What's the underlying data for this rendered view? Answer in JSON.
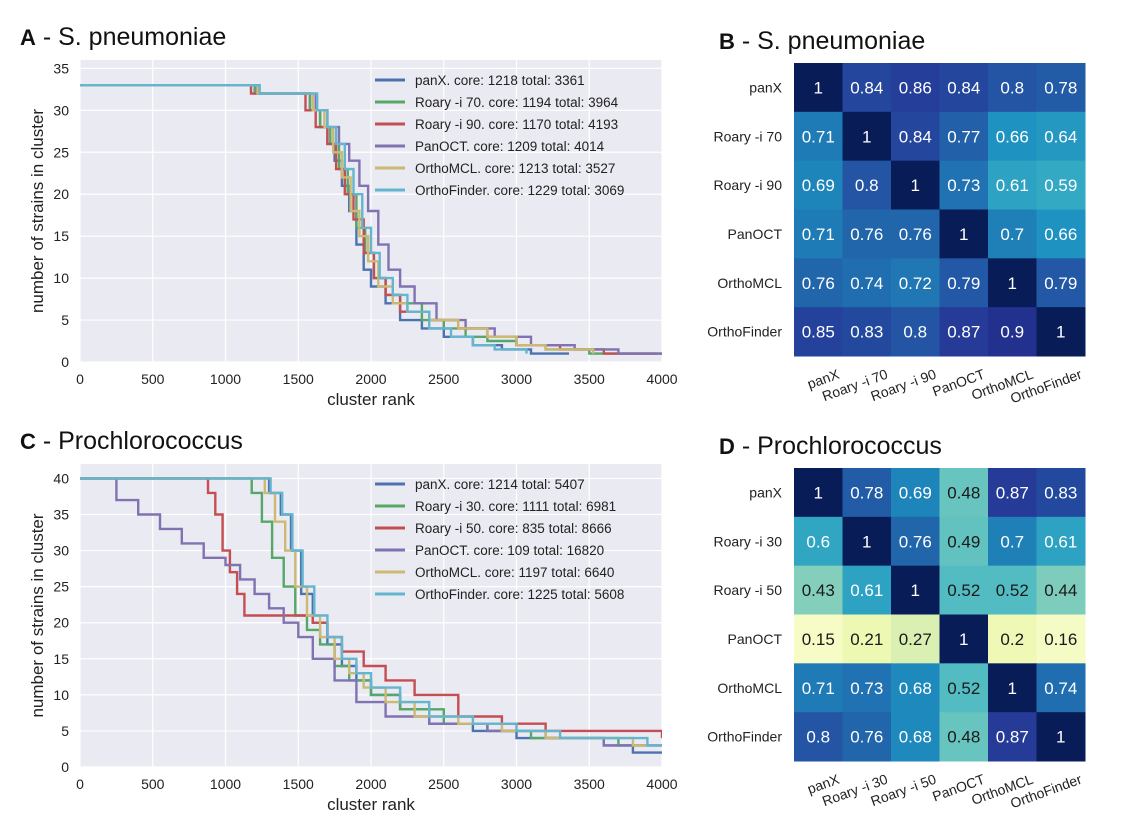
{
  "panels": [
    {
      "letter": "A",
      "title": " - S. pneumoniae"
    },
    {
      "letter": "B",
      "title": " - S. pneumoniae"
    },
    {
      "letter": "C",
      "title": " - Prochlorococcus"
    },
    {
      "letter": "D",
      "title": " - Prochlorococcus"
    }
  ],
  "chart_data": [
    {
      "panel": "A",
      "type": "line",
      "xlabel": "cluster rank",
      "ylabel": "number of strains in cluster",
      "xlim": [
        0,
        4000
      ],
      "ylim": [
        0,
        36
      ],
      "xticks": [
        0,
        500,
        1000,
        1500,
        2000,
        2500,
        3000,
        3500,
        4000
      ],
      "yticks": [
        0,
        5,
        10,
        15,
        20,
        25,
        30,
        35
      ],
      "grid": true,
      "legend_position": "top-right",
      "series": [
        {
          "name": "panX. core: 1218 total: 3361",
          "color": "#4c72b0",
          "x": [
            0,
            1218,
            1220,
            1500,
            1580,
            1650,
            1700,
            1750,
            1800,
            1850,
            1900,
            1950,
            2000,
            2100,
            2200,
            2350,
            2500,
            2700,
            2900,
            3100,
            3361
          ],
          "y": [
            33,
            33,
            32,
            32,
            30,
            28,
            26,
            24,
            21,
            18,
            14,
            11,
            9,
            7,
            5,
            4,
            3,
            2,
            1.5,
            1,
            1
          ]
        },
        {
          "name": "Roary -i 70. core: 1194 total: 3964",
          "color": "#55a868",
          "x": [
            0,
            1194,
            1200,
            1480,
            1580,
            1650,
            1720,
            1780,
            1840,
            1900,
            1960,
            2020,
            2100,
            2200,
            2350,
            2500,
            2650,
            2800,
            3000,
            3200,
            3500,
            3964
          ],
          "y": [
            33,
            33,
            32,
            32,
            30,
            28,
            26,
            23,
            20,
            16,
            13,
            10,
            8,
            7,
            5,
            4,
            3,
            2.5,
            2,
            1.5,
            1,
            1
          ]
        },
        {
          "name": "Roary -i 90. core: 1170 total: 4193",
          "color": "#c44e52",
          "x": [
            0,
            1170,
            1175,
            1450,
            1550,
            1620,
            1700,
            1760,
            1820,
            1880,
            1950,
            2020,
            2100,
            2200,
            2400,
            2600,
            2800,
            3000,
            3300,
            3600,
            4000
          ],
          "y": [
            33,
            33,
            32,
            32,
            30,
            28,
            26,
            23,
            20,
            17,
            13,
            10,
            8,
            6,
            5,
            4,
            3,
            2,
            1.5,
            1,
            1
          ]
        },
        {
          "name": "PanOCT. core: 1209 total: 4014",
          "color": "#8172b2",
          "x": [
            0,
            1209,
            1215,
            1520,
            1620,
            1700,
            1780,
            1850,
            1920,
            1980,
            2050,
            2120,
            2200,
            2300,
            2450,
            2650,
            2850,
            3100,
            3400,
            3700,
            4000
          ],
          "y": [
            33,
            33,
            32,
            32,
            30,
            28,
            26,
            24,
            21,
            18,
            14,
            11,
            9,
            7,
            5,
            4,
            3,
            2,
            1.5,
            1,
            1
          ]
        },
        {
          "name": "OrthoMCL. core: 1213 total: 3527",
          "color": "#ccb974",
          "x": [
            0,
            1213,
            1220,
            1500,
            1600,
            1680,
            1740,
            1800,
            1860,
            1920,
            1980,
            2050,
            2150,
            2250,
            2400,
            2600,
            2800,
            3000,
            3200,
            3527
          ],
          "y": [
            33,
            33,
            32,
            32,
            30,
            28,
            25,
            22,
            18,
            15,
            12,
            9,
            7,
            6,
            5,
            4,
            3,
            2,
            1.5,
            1
          ]
        },
        {
          "name": "OrthoFinder. core: 1229 total: 3069",
          "color": "#64b5cd",
          "x": [
            0,
            1229,
            1235,
            1530,
            1630,
            1700,
            1760,
            1820,
            1880,
            1940,
            2000,
            2060,
            2150,
            2250,
            2400,
            2550,
            2700,
            2850,
            3069
          ],
          "y": [
            33,
            33,
            32,
            32,
            30,
            28,
            26,
            23,
            20,
            16,
            13,
            10,
            8,
            6,
            4,
            3,
            2,
            1.5,
            1
          ]
        }
      ]
    },
    {
      "panel": "B",
      "type": "heatmap",
      "row_labels": [
        "panX",
        "Roary -i 70",
        "Roary -i 90",
        "PanOCT",
        "OrthoMCL",
        "OrthoFinder"
      ],
      "col_labels": [
        "panX",
        "Roary -i 70",
        "Roary -i 90",
        "PanOCT",
        "OrthoMCL",
        "OrthoFinder"
      ],
      "values": [
        [
          1,
          0.84,
          0.86,
          0.84,
          0.8,
          0.78
        ],
        [
          0.71,
          1,
          0.84,
          0.77,
          0.66,
          0.64
        ],
        [
          0.69,
          0.8,
          1,
          0.73,
          0.61,
          0.59
        ],
        [
          0.71,
          0.76,
          0.76,
          1,
          0.7,
          0.66
        ],
        [
          0.76,
          0.74,
          0.72,
          0.79,
          1,
          0.79
        ],
        [
          0.85,
          0.83,
          0.8,
          0.87,
          0.9,
          1
        ]
      ],
      "colormap": "YlGnBu",
      "vmin": 0.1,
      "vmax": 1.0
    },
    {
      "panel": "C",
      "type": "line",
      "xlabel": "cluster rank",
      "ylabel": "number of strains in cluster",
      "xlim": [
        0,
        4000
      ],
      "ylim": [
        0,
        42
      ],
      "xticks": [
        0,
        500,
        1000,
        1500,
        2000,
        2500,
        3000,
        3500,
        4000
      ],
      "yticks": [
        0,
        5,
        10,
        15,
        20,
        25,
        30,
        35,
        40
      ],
      "grid": true,
      "legend_position": "top-right",
      "series": [
        {
          "name": "panX. core: 1214 total: 5407",
          "color": "#4c72b0",
          "x": [
            0,
            1214,
            1300,
            1380,
            1450,
            1520,
            1600,
            1700,
            1800,
            1900,
            2000,
            2200,
            2400,
            2700,
            3000,
            3300,
            3600,
            3800,
            4000
          ],
          "y": [
            40,
            40,
            38,
            35,
            30,
            24,
            20,
            17,
            14,
            12,
            10,
            8,
            6,
            5,
            4,
            4,
            3,
            2,
            2
          ]
        },
        {
          "name": "Roary -i 30. core: 1111 total: 6981",
          "color": "#55a868",
          "x": [
            0,
            1111,
            1180,
            1250,
            1320,
            1400,
            1480,
            1560,
            1650,
            1750,
            1850,
            2000,
            2200,
            2500,
            2800,
            3100,
            3400,
            3700,
            4000
          ],
          "y": [
            40,
            40,
            38,
            34,
            29,
            25,
            21,
            19,
            17,
            14,
            12,
            10,
            8,
            6,
            5,
            4,
            4,
            3,
            3
          ]
        },
        {
          "name": "Roary -i 50. core: 835 total: 8666",
          "color": "#c44e52",
          "x": [
            0,
            835,
            880,
            930,
            980,
            1030,
            1080,
            1130,
            1400,
            1600,
            1700,
            1800,
            1950,
            2100,
            2300,
            2600,
            2900,
            3200,
            3600,
            4000
          ],
          "y": [
            40,
            40,
            38,
            35,
            30,
            27,
            24,
            21,
            21,
            20,
            18,
            16,
            14,
            12,
            10,
            7,
            6,
            5,
            5,
            4
          ]
        },
        {
          "name": "PanOCT. core: 109 total: 16820",
          "color": "#8172b2",
          "x": [
            0,
            109,
            250,
            400,
            550,
            700,
            850,
            1000,
            1100,
            1200,
            1300,
            1400,
            1500,
            1600,
            1750,
            1900,
            2100,
            2400,
            2800,
            3200,
            3600,
            4000
          ],
          "y": [
            40,
            40,
            37,
            35,
            33,
            31,
            29,
            28,
            26,
            24,
            22,
            20,
            18,
            15,
            12,
            9,
            7,
            6,
            5,
            4,
            3,
            3
          ]
        },
        {
          "name": "OrthoMCL. core: 1197 total: 6640",
          "color": "#ccb974",
          "x": [
            0,
            1197,
            1270,
            1340,
            1410,
            1480,
            1560,
            1650,
            1750,
            1850,
            1950,
            2100,
            2300,
            2600,
            2900,
            3200,
            3500,
            3800,
            4000
          ],
          "y": [
            40,
            40,
            38,
            34,
            30,
            25,
            21,
            18,
            15,
            13,
            11,
            9,
            7,
            6,
            5,
            4,
            4,
            3,
            3
          ]
        },
        {
          "name": "OrthoFinder. core: 1225 total: 5608",
          "color": "#64b5cd",
          "x": [
            0,
            1225,
            1310,
            1390,
            1460,
            1530,
            1610,
            1700,
            1800,
            1900,
            2000,
            2200,
            2400,
            2700,
            3000,
            3300,
            3600,
            3900,
            4000
          ],
          "y": [
            40,
            40,
            38,
            35,
            30,
            25,
            21,
            18,
            15,
            13,
            11,
            9,
            7,
            6,
            5,
            4,
            4,
            3,
            3
          ]
        }
      ]
    },
    {
      "panel": "D",
      "type": "heatmap",
      "row_labels": [
        "panX",
        "Roary -i 30",
        "Roary -i 50",
        "PanOCT",
        "OrthoMCL",
        "OrthoFinder"
      ],
      "col_labels": [
        "panX",
        "Roary -i 30",
        "Roary -i 50",
        "PanOCT",
        "OrthoMCL",
        "OrthoFinder"
      ],
      "values": [
        [
          1,
          0.78,
          0.69,
          0.48,
          0.87,
          0.83
        ],
        [
          0.6,
          1,
          0.76,
          0.49,
          0.7,
          0.61
        ],
        [
          0.43,
          0.61,
          1,
          0.52,
          0.52,
          0.44
        ],
        [
          0.15,
          0.21,
          0.27,
          1,
          0.2,
          0.16
        ],
        [
          0.71,
          0.73,
          0.68,
          0.52,
          1,
          0.74
        ],
        [
          0.8,
          0.76,
          0.68,
          0.48,
          0.87,
          1
        ]
      ],
      "colormap": "YlGnBu",
      "vmin": 0.1,
      "vmax": 1.0
    }
  ]
}
